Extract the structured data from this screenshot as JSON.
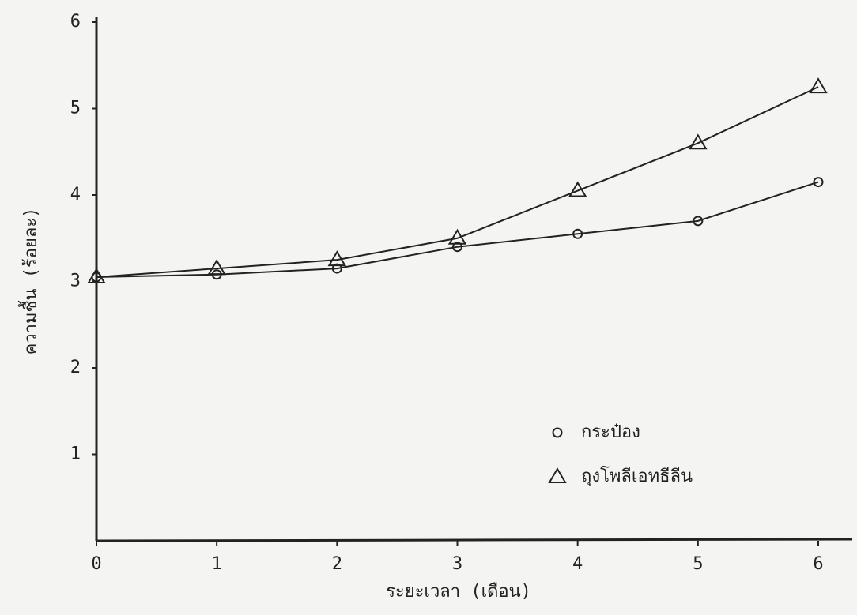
{
  "chart_data": {
    "type": "line",
    "x_label": "ระยะเวลา (เดือน)",
    "y_label": "ความชื้น (ร้อยละ)",
    "x": [
      0,
      1,
      2,
      3,
      4,
      5,
      6
    ],
    "series": [
      {
        "name": "กระป๋อง",
        "color": "#222222",
        "marker": "circle",
        "values": [
          3.05,
          3.08,
          3.15,
          3.4,
          3.55,
          3.7,
          4.15
        ]
      },
      {
        "name": "ถุงโพลีเอทธีลีน",
        "color": "#222222",
        "marker": "triangle",
        "values": [
          3.05,
          3.15,
          3.25,
          3.5,
          4.05,
          4.6,
          5.25
        ]
      }
    ],
    "xlim": [
      0,
      6
    ],
    "xticks": [
      0,
      1,
      2,
      3,
      4,
      5,
      6
    ],
    "ylim": [
      0,
      6
    ],
    "yticks": [
      1,
      2,
      3,
      4,
      5,
      6
    ],
    "grid": false
  }
}
